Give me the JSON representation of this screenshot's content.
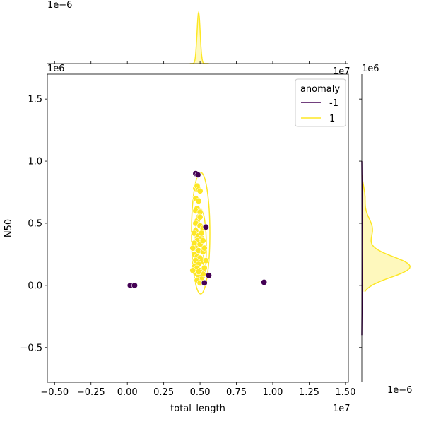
{
  "chart_data": {
    "type": "scatter",
    "xlabel": "total_length",
    "ylabel": "N50",
    "x_offset_label": "1e7",
    "y_offset_label": "1e6",
    "top_margin_offset_label": "1e−6",
    "right_margin_offset_label": "1e−6",
    "xlim": [
      -0.55,
      1.52
    ],
    "ylim": [
      -0.78,
      1.7
    ],
    "x_ticks": [
      -0.5,
      -0.25,
      0.0,
      0.25,
      0.5,
      0.75,
      1.0,
      1.25,
      1.5
    ],
    "x_tick_labels": [
      "−0.50",
      "−0.25",
      "0.00",
      "0.25",
      "0.50",
      "0.75",
      "1.00",
      "1.25",
      "1.50"
    ],
    "y_ticks": [
      -0.5,
      0.0,
      0.5,
      1.0,
      1.5
    ],
    "y_tick_labels": [
      "−0.5",
      "0.0",
      "0.5",
      "1.0",
      "1.5"
    ],
    "grid": false,
    "legend": {
      "title": "anomaly",
      "placement": "top-right",
      "entries": [
        {
          "label": "-1",
          "color": "#440154"
        },
        {
          "label": "1",
          "color": "#fde725"
        }
      ]
    },
    "series": [
      {
        "name": "-1",
        "color": "#440154",
        "points": [
          [
            0.02,
            0.0
          ],
          [
            0.05,
            0.0
          ],
          [
            0.47,
            0.9
          ],
          [
            0.485,
            0.89
          ],
          [
            0.54,
            0.47
          ],
          [
            0.53,
            0.02
          ],
          [
            0.56,
            0.08
          ],
          [
            0.94,
            0.025
          ]
        ]
      },
      {
        "name": "1",
        "color": "#fde725",
        "points": [
          [
            0.47,
            0.78
          ],
          [
            0.48,
            0.8
          ],
          [
            0.49,
            0.77
          ],
          [
            0.5,
            0.76
          ],
          [
            0.47,
            0.7
          ],
          [
            0.49,
            0.68
          ],
          [
            0.48,
            0.62
          ],
          [
            0.47,
            0.6
          ],
          [
            0.5,
            0.59
          ],
          [
            0.49,
            0.55
          ],
          [
            0.48,
            0.52
          ],
          [
            0.47,
            0.5
          ],
          [
            0.5,
            0.48
          ],
          [
            0.52,
            0.46
          ],
          [
            0.47,
            0.44
          ],
          [
            0.46,
            0.42
          ],
          [
            0.49,
            0.4
          ],
          [
            0.51,
            0.38
          ],
          [
            0.48,
            0.36
          ],
          [
            0.46,
            0.34
          ],
          [
            0.5,
            0.33
          ],
          [
            0.47,
            0.3
          ],
          [
            0.49,
            0.28
          ],
          [
            0.52,
            0.27
          ],
          [
            0.46,
            0.25
          ],
          [
            0.48,
            0.23
          ],
          [
            0.5,
            0.22
          ],
          [
            0.47,
            0.2
          ],
          [
            0.51,
            0.19
          ],
          [
            0.49,
            0.17
          ],
          [
            0.46,
            0.15
          ],
          [
            0.48,
            0.14
          ],
          [
            0.5,
            0.12
          ],
          [
            0.47,
            0.1
          ],
          [
            0.52,
            0.09
          ],
          [
            0.49,
            0.07
          ],
          [
            0.51,
            0.05
          ],
          [
            0.48,
            0.04
          ],
          [
            0.5,
            0.02
          ],
          [
            0.53,
            0.14
          ],
          [
            0.54,
            0.2
          ],
          [
            0.53,
            0.3
          ],
          [
            0.45,
            0.12
          ],
          [
            0.45,
            0.3
          ],
          [
            0.52,
            0.36
          ],
          [
            0.5,
            0.55
          ],
          [
            0.51,
            0.42
          ],
          [
            0.49,
            0.11
          ]
        ]
      }
    ]
  }
}
